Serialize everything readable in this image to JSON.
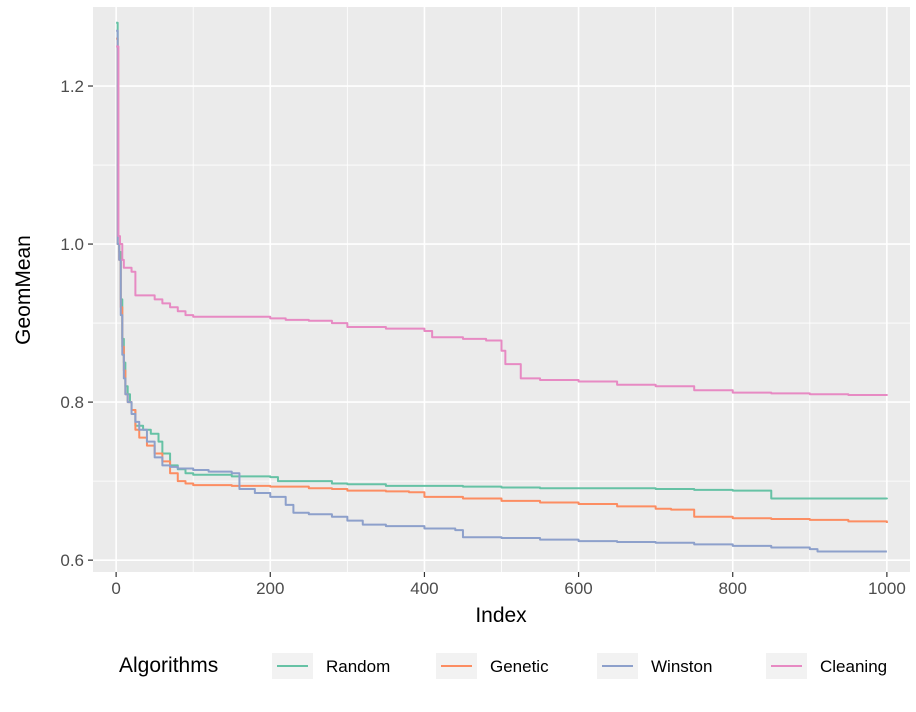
{
  "chart_data": {
    "type": "line",
    "title": "",
    "xlabel": "Index",
    "ylabel": "GeomMean",
    "xlim": [
      -30,
      1030
    ],
    "ylim": [
      0.585,
      1.3
    ],
    "x_ticks": [
      0,
      200,
      400,
      600,
      800,
      1000
    ],
    "x_tick_labels": [
      "0",
      "200",
      "400",
      "600",
      "800",
      "1000"
    ],
    "y_ticks": [
      0.6,
      0.8,
      1.0,
      1.2
    ],
    "y_tick_labels": [
      "0.6",
      "0.8",
      "1.0",
      "1.2"
    ],
    "grid": true,
    "legend": {
      "title": "Algorithms",
      "position": "bottom"
    },
    "series": [
      {
        "name": "Random",
        "color": "#66C2A5",
        "points": [
          [
            0,
            1.28
          ],
          [
            2,
            1.0
          ],
          [
            4,
            0.99
          ],
          [
            6,
            0.93
          ],
          [
            8,
            0.88
          ],
          [
            10,
            0.85
          ],
          [
            12,
            0.82
          ],
          [
            15,
            0.81
          ],
          [
            18,
            0.8
          ],
          [
            20,
            0.79
          ],
          [
            25,
            0.77
          ],
          [
            35,
            0.765
          ],
          [
            45,
            0.76
          ],
          [
            55,
            0.75
          ],
          [
            60,
            0.735
          ],
          [
            70,
            0.72
          ],
          [
            80,
            0.715
          ],
          [
            90,
            0.71
          ],
          [
            100,
            0.708
          ],
          [
            150,
            0.706
          ],
          [
            200,
            0.705
          ],
          [
            210,
            0.7
          ],
          [
            280,
            0.697
          ],
          [
            300,
            0.696
          ],
          [
            350,
            0.694
          ],
          [
            400,
            0.694
          ],
          [
            450,
            0.693
          ],
          [
            500,
            0.692
          ],
          [
            550,
            0.691
          ],
          [
            600,
            0.691
          ],
          [
            700,
            0.69
          ],
          [
            750,
            0.689
          ],
          [
            800,
            0.688
          ],
          [
            850,
            0.678
          ],
          [
            900,
            0.678
          ],
          [
            950,
            0.678
          ],
          [
            1000,
            0.677
          ]
        ]
      },
      {
        "name": "Genetic",
        "color": "#FC8D62",
        "points": [
          [
            0,
            1.26
          ],
          [
            2,
            1.0
          ],
          [
            4,
            0.98
          ],
          [
            6,
            0.92
          ],
          [
            8,
            0.87
          ],
          [
            10,
            0.84
          ],
          [
            12,
            0.81
          ],
          [
            15,
            0.8
          ],
          [
            20,
            0.79
          ],
          [
            25,
            0.765
          ],
          [
            30,
            0.755
          ],
          [
            40,
            0.745
          ],
          [
            50,
            0.735
          ],
          [
            60,
            0.725
          ],
          [
            70,
            0.71
          ],
          [
            80,
            0.7
          ],
          [
            90,
            0.697
          ],
          [
            100,
            0.695
          ],
          [
            150,
            0.694
          ],
          [
            200,
            0.693
          ],
          [
            250,
            0.691
          ],
          [
            280,
            0.69
          ],
          [
            300,
            0.688
          ],
          [
            350,
            0.687
          ],
          [
            380,
            0.686
          ],
          [
            400,
            0.68
          ],
          [
            450,
            0.678
          ],
          [
            500,
            0.675
          ],
          [
            550,
            0.673
          ],
          [
            600,
            0.671
          ],
          [
            650,
            0.668
          ],
          [
            700,
            0.665
          ],
          [
            720,
            0.664
          ],
          [
            750,
            0.655
          ],
          [
            800,
            0.653
          ],
          [
            850,
            0.652
          ],
          [
            900,
            0.651
          ],
          [
            950,
            0.649
          ],
          [
            1000,
            0.647
          ]
        ]
      },
      {
        "name": "Winston",
        "color": "#8DA0CB",
        "points": [
          [
            0,
            1.27
          ],
          [
            2,
            1.0
          ],
          [
            4,
            0.98
          ],
          [
            6,
            0.91
          ],
          [
            8,
            0.86
          ],
          [
            10,
            0.83
          ],
          [
            12,
            0.81
          ],
          [
            15,
            0.8
          ],
          [
            20,
            0.785
          ],
          [
            25,
            0.775
          ],
          [
            30,
            0.765
          ],
          [
            40,
            0.75
          ],
          [
            50,
            0.73
          ],
          [
            60,
            0.72
          ],
          [
            70,
            0.718
          ],
          [
            80,
            0.716
          ],
          [
            100,
            0.714
          ],
          [
            120,
            0.712
          ],
          [
            150,
            0.71
          ],
          [
            160,
            0.69
          ],
          [
            180,
            0.685
          ],
          [
            200,
            0.68
          ],
          [
            220,
            0.67
          ],
          [
            230,
            0.66
          ],
          [
            250,
            0.658
          ],
          [
            280,
            0.655
          ],
          [
            300,
            0.65
          ],
          [
            320,
            0.645
          ],
          [
            350,
            0.643
          ],
          [
            400,
            0.64
          ],
          [
            440,
            0.638
          ],
          [
            450,
            0.629
          ],
          [
            500,
            0.628
          ],
          [
            550,
            0.626
          ],
          [
            600,
            0.624
          ],
          [
            650,
            0.623
          ],
          [
            700,
            0.622
          ],
          [
            750,
            0.62
          ],
          [
            800,
            0.618
          ],
          [
            850,
            0.616
          ],
          [
            900,
            0.614
          ],
          [
            910,
            0.611
          ],
          [
            950,
            0.611
          ],
          [
            1000,
            0.611
          ]
        ]
      },
      {
        "name": "Cleaning",
        "color": "#E78AC3",
        "points": [
          [
            0,
            1.25
          ],
          [
            3,
            1.01
          ],
          [
            5,
            1.0
          ],
          [
            8,
            0.98
          ],
          [
            10,
            0.97
          ],
          [
            20,
            0.965
          ],
          [
            25,
            0.935
          ],
          [
            30,
            0.935
          ],
          [
            45,
            0.935
          ],
          [
            50,
            0.93
          ],
          [
            60,
            0.925
          ],
          [
            70,
            0.92
          ],
          [
            80,
            0.915
          ],
          [
            90,
            0.91
          ],
          [
            100,
            0.908
          ],
          [
            150,
            0.908
          ],
          [
            200,
            0.906
          ],
          [
            220,
            0.904
          ],
          [
            250,
            0.903
          ],
          [
            280,
            0.9
          ],
          [
            300,
            0.895
          ],
          [
            350,
            0.893
          ],
          [
            400,
            0.89
          ],
          [
            410,
            0.882
          ],
          [
            450,
            0.88
          ],
          [
            480,
            0.878
          ],
          [
            500,
            0.865
          ],
          [
            505,
            0.848
          ],
          [
            520,
            0.848
          ],
          [
            525,
            0.83
          ],
          [
            550,
            0.828
          ],
          [
            600,
            0.826
          ],
          [
            650,
            0.822
          ],
          [
            700,
            0.82
          ],
          [
            750,
            0.815
          ],
          [
            800,
            0.812
          ],
          [
            850,
            0.811
          ],
          [
            900,
            0.81
          ],
          [
            950,
            0.809
          ],
          [
            1000,
            0.808
          ]
        ]
      }
    ]
  }
}
